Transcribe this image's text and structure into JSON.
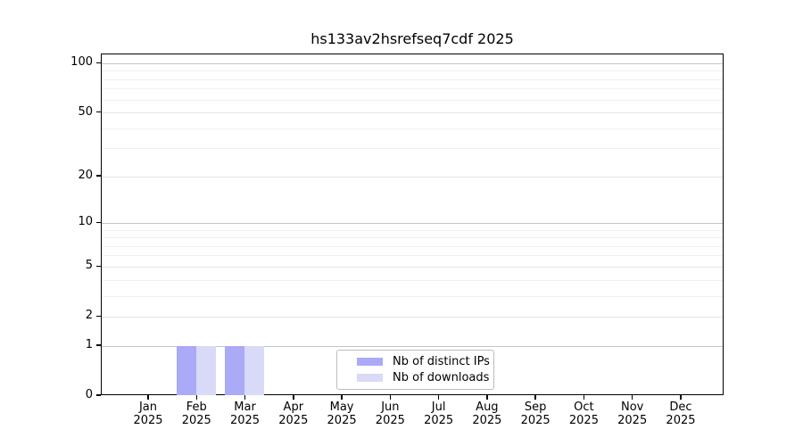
{
  "figure": {
    "background": "#ffffff"
  },
  "chart_data": {
    "type": "bar",
    "title": "hs133av2hsrefseq7cdf 2025",
    "categories": [
      "Jan",
      "Feb",
      "Mar",
      "Apr",
      "May",
      "Jun",
      "Jul",
      "Aug",
      "Sep",
      "Oct",
      "Nov",
      "Dec"
    ],
    "x_year_label": "2025",
    "series": [
      {
        "name": "Nb of distinct IPs",
        "color": "#aaaaf7",
        "values": [
          0,
          1,
          1,
          0,
          0,
          0,
          0,
          0,
          0,
          0,
          0,
          0
        ]
      },
      {
        "name": "Nb of downloads",
        "color": "#d9d9f8",
        "values": [
          0,
          1,
          1,
          0,
          0,
          0,
          0,
          0,
          0,
          0,
          0,
          0
        ]
      }
    ],
    "yscale": "log1p",
    "ylim": [
      0,
      114
    ],
    "y_ticks": [
      0,
      1,
      2,
      5,
      10,
      20,
      50,
      100
    ],
    "y_major_gridlines": [
      1,
      10,
      100
    ],
    "y_minor_gridlines": [
      3,
      4,
      6,
      7,
      8,
      9,
      30,
      40,
      60,
      70,
      80,
      90
    ],
    "grid": "horizontal",
    "legend_position": "lower-center",
    "xlabel": "",
    "ylabel": ""
  },
  "style_colors": {
    "major_grid": "#c6c6c6",
    "tick_grid": "#e3e3e3",
    "minor_grid": "#efefef",
    "spine": "#000000",
    "legend_border": "#bdbdbd",
    "text": "#000000"
  }
}
